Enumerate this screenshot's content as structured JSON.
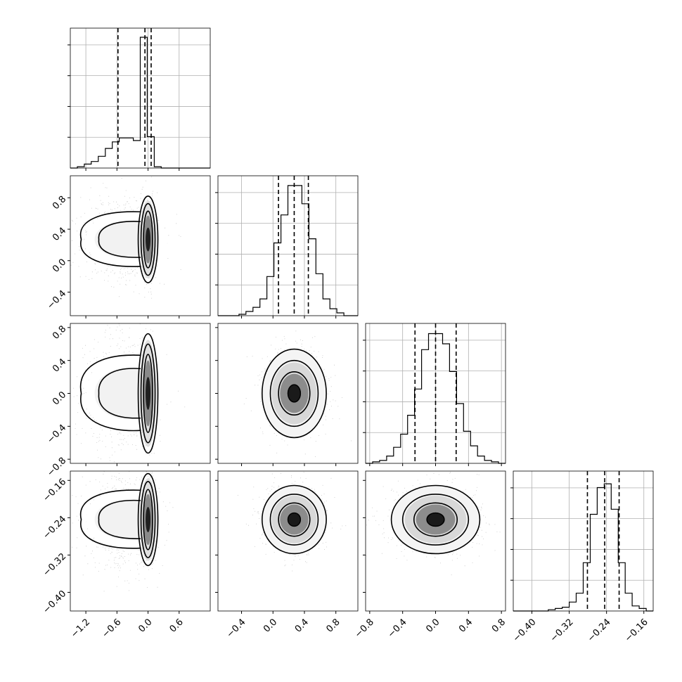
{
  "chart_data": {
    "type": "corner",
    "n_params": 4,
    "grid": true,
    "colors": {
      "line": "#000000",
      "grid": "#b0b0b0",
      "points": "#9a9a9a",
      "background": "#ffffff"
    },
    "params": [
      {
        "xlim": [
          -1.5,
          1.2
        ],
        "x_ticks": [
          -1.2,
          -0.6,
          0.0,
          0.6
        ],
        "x_tick_labels": [
          "−1.2",
          "−0.6",
          "0.0",
          "0.6"
        ],
        "quantiles": [
          -0.58,
          -0.06,
          0.06
        ],
        "hist_edges": [
          -1.5,
          -1.365,
          -1.23,
          -1.095,
          -0.96,
          -0.825,
          -0.69,
          -0.555,
          -0.42,
          -0.285,
          -0.15,
          -0.015,
          0.12,
          0.255,
          0.39,
          0.525,
          0.66,
          0.795,
          0.93,
          1.065,
          1.2
        ],
        "hist_counts": [
          0,
          0.01,
          0.03,
          0.05,
          0.09,
          0.15,
          0.2,
          0.23,
          0.23,
          0.21,
          1.0,
          0.24,
          0.01,
          0.0,
          0.0,
          0,
          0,
          0,
          0,
          0
        ],
        "hist_max": 1.07
      },
      {
        "xlim": [
          -0.7,
          1.08
        ],
        "x_ticks": [
          -0.4,
          0.0,
          0.4,
          0.8
        ],
        "x_tick_labels": [
          "−0.4",
          "0.0",
          "0.4",
          "0.8"
        ],
        "y_ticks": [
          -0.4,
          0.0,
          0.4,
          0.8
        ],
        "y_tick_labels": [
          "−0.4",
          "0.0",
          "0.4",
          "0.8"
        ],
        "quantiles": [
          0.07,
          0.27,
          0.45
        ],
        "hist_edges": [
          -0.7,
          -0.611,
          -0.522,
          -0.433,
          -0.344,
          -0.255,
          -0.166,
          -0.077,
          0.012,
          0.101,
          0.19,
          0.279,
          0.368,
          0.457,
          0.546,
          0.635,
          0.724,
          0.813,
          0.902,
          0.991,
          1.08
        ],
        "hist_counts": [
          0,
          0,
          0,
          0.01,
          0.03,
          0.06,
          0.12,
          0.28,
          0.52,
          0.72,
          0.93,
          0.93,
          0.8,
          0.55,
          0.3,
          0.12,
          0.05,
          0.02,
          0,
          0
        ],
        "hist_max": 1.0
      },
      {
        "xlim": [
          -0.85,
          0.85
        ],
        "x_ticks": [
          -0.8,
          -0.4,
          0.0,
          0.4,
          0.8
        ],
        "x_tick_labels": [
          "−0.8",
          "−0.4",
          "0.0",
          "0.4",
          "0.8"
        ],
        "y_ticks": [
          -0.8,
          -0.4,
          0.0,
          0.4,
          0.8
        ],
        "y_tick_labels": [
          "−0.8",
          "−0.4",
          "0.0",
          "0.4",
          "0.8"
        ],
        "quantiles": [
          -0.25,
          0.0,
          0.25
        ],
        "hist_edges": [
          -0.85,
          -0.765,
          -0.68,
          -0.595,
          -0.51,
          -0.425,
          -0.34,
          -0.255,
          -0.17,
          -0.085,
          0.0,
          0.085,
          0.17,
          0.255,
          0.34,
          0.425,
          0.51,
          0.595,
          0.68,
          0.765,
          0.85
        ],
        "hist_counts": [
          0,
          0.01,
          0.02,
          0.05,
          0.11,
          0.2,
          0.33,
          0.51,
          0.78,
          0.89,
          0.89,
          0.82,
          0.63,
          0.41,
          0.22,
          0.12,
          0.05,
          0.02,
          0.01,
          0
        ],
        "hist_max": 0.96
      },
      {
        "xlim": [
          -0.44,
          -0.14
        ],
        "x_ticks": [
          -0.4,
          -0.32,
          -0.24,
          -0.16
        ],
        "x_tick_labels": [
          "−0.40",
          "−0.32",
          "−0.24",
          "−0.16"
        ],
        "y_ticks": [
          -0.4,
          -0.32,
          -0.24,
          -0.16
        ],
        "y_tick_labels": [
          "−0.40",
          "−0.32",
          "−0.24",
          "−0.16"
        ],
        "quantiles": [
          -0.281,
          -0.244,
          -0.213
        ],
        "hist_edges": [
          -0.44,
          -0.425,
          -0.41,
          -0.395,
          -0.38,
          -0.365,
          -0.35,
          -0.335,
          -0.32,
          -0.305,
          -0.29,
          -0.275,
          -0.26,
          -0.245,
          -0.23,
          -0.215,
          -0.2,
          -0.185,
          -0.17,
          -0.155,
          -0.14
        ],
        "hist_counts": [
          0,
          0,
          0,
          0,
          0,
          0.01,
          0.02,
          0.03,
          0.07,
          0.14,
          0.38,
          0.76,
          0.97,
          1.0,
          0.8,
          0.38,
          0.14,
          0.04,
          0.02,
          0
        ],
        "hist_max": 1.1
      }
    ]
  }
}
